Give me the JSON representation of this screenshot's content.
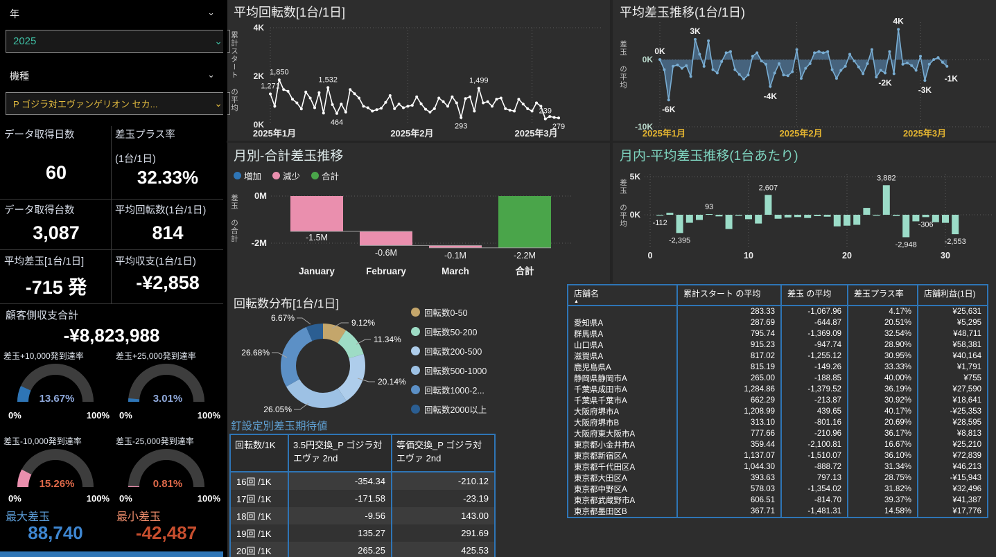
{
  "colors": {
    "accent_blue": "#2E75B6",
    "pink": "#EA8FAE",
    "green": "#4AA54A",
    "teal_bar": "#9BDCC8",
    "axis_yellow": "#E3B431",
    "teal_value": "#3FBFA4",
    "machine_yellow": "#E3BC3F",
    "max_blue": "#3E86D0",
    "min_red": "#C74E2E",
    "gauge_pos_text": "#8FA9DB",
    "gauge_neg_text": "#E06A4A",
    "table_border": "#2E75B6"
  },
  "sidebar": {
    "year_filter": {
      "label": "年",
      "value": "2025"
    },
    "machine_filter": {
      "label": "機種",
      "value": "P ゴジラ対エヴァンゲリオン セカ..."
    },
    "kpis": [
      {
        "label": "データ取得日数",
        "sub": "",
        "value": "60"
      },
      {
        "label": "差玉プラス率",
        "sub": "(1台/1日)",
        "value": "32.33%"
      },
      {
        "label": "データ取得台数",
        "sub": "",
        "value": "3,087"
      },
      {
        "label": "平均回転数(1台/1日)",
        "sub": "",
        "value": "814"
      },
      {
        "label": "平均差玉[1台/1日]",
        "sub": "",
        "value": "-715 発"
      },
      {
        "label": "平均収支(1台/1日)",
        "sub": "",
        "value": "-¥2,858"
      }
    ],
    "total": {
      "label": "顧客側収支合計",
      "value": "-¥8,823,988"
    },
    "gauges": [
      {
        "label": "差玉+10,000発到達率",
        "value": 13.67,
        "text": "13.67%",
        "fill": "#2E75B6",
        "text_color": "#8FA9DB",
        "min": "0%",
        "max": "100%"
      },
      {
        "label": "差玉+25,000発到達率",
        "value": 3.01,
        "text": "3.01%",
        "fill": "#2E75B6",
        "text_color": "#8FA9DB",
        "min": "0%",
        "max": "100%"
      },
      {
        "label": "差玉-10,000発到達率",
        "value": 15.26,
        "text": "15.26%",
        "fill": "#EA8FAE",
        "text_color": "#E06A4A",
        "min": "0%",
        "max": "100%"
      },
      {
        "label": "差玉-25,000発到達率",
        "value": 0.81,
        "text": "0.81%",
        "fill": "#EA8FAE",
        "text_color": "#E06A4A",
        "min": "0%",
        "max": "100%"
      }
    ],
    "max_dama": {
      "label": "最大差玉",
      "value": "88,740"
    },
    "min_dama": {
      "label": "最小差玉",
      "value": "-42,487"
    }
  },
  "chart_data": [
    {
      "id": "rotation_line",
      "type": "line",
      "title": "平均回転数[1台/1日]",
      "ylabel": "累計スタート の平均",
      "ylim": [
        0,
        4000
      ],
      "yticks": [
        {
          "label": "4K",
          "v": 4000
        },
        {
          "label": "2K",
          "v": 2000
        },
        {
          "label": "0K",
          "v": 0
        }
      ],
      "x_slots": 75,
      "xticks": [
        {
          "label": "2025年1月",
          "slot": 0
        },
        {
          "label": "2025年2月",
          "slot": 31
        },
        {
          "label": "2025年3月",
          "slot": 59
        }
      ],
      "line_color": "#FFFFFF",
      "values": [
        1271,
        760,
        1850,
        1450,
        1380,
        1050,
        900,
        650,
        1350,
        1100,
        700,
        1320,
        480,
        1532,
        830,
        464,
        850,
        520,
        1450,
        1280,
        1100,
        760,
        700,
        560,
        620,
        680,
        920,
        1200,
        660,
        850,
        700,
        760,
        800,
        1150,
        860,
        640,
        520,
        660,
        1100,
        950,
        760,
        1150,
        900,
        293,
        1080,
        1150,
        560,
        1499,
        900,
        950,
        760,
        1050,
        1100,
        660,
        600,
        560,
        1050,
        850,
        660,
        560,
        900,
        760,
        239,
        340,
        300,
        279
      ],
      "point_labels": [
        {
          "i": 0,
          "text": "1,271",
          "pos": "above"
        },
        {
          "i": 2,
          "text": "1,850",
          "pos": "above"
        },
        {
          "i": 13,
          "text": "1,532",
          "pos": "above"
        },
        {
          "i": 15,
          "text": "464",
          "pos": "below"
        },
        {
          "i": 43,
          "text": "293",
          "pos": "below"
        },
        {
          "i": 47,
          "text": "1,499",
          "pos": "above"
        },
        {
          "i": 62,
          "text": "239",
          "pos": "above"
        },
        {
          "i": 65,
          "text": "279",
          "pos": "below"
        }
      ]
    },
    {
      "id": "dama_line",
      "type": "area",
      "title": "平均差玉推移(1台/1日)",
      "ylabel": "差玉 の平均",
      "ylim": [
        -10000,
        5000
      ],
      "yticks": [
        {
          "label": "0K",
          "v": 0
        },
        {
          "label": "-10K",
          "v": -10000
        }
      ],
      "x_slots": 75,
      "xticks": [
        {
          "label": "2025年1月",
          "slot": 0
        },
        {
          "label": "2025年2月",
          "slot": 31
        },
        {
          "label": "2025年3月",
          "slot": 59
        }
      ],
      "line_color": "#79ADD2",
      "fill_color": "rgba(86,133,175,0.62)",
      "values": [
        0,
        -1500,
        -6000,
        -1000,
        -800,
        -1300,
        -900,
        -2500,
        3000,
        800,
        -1000,
        2800,
        -1500,
        -2000,
        -300,
        1000,
        1200,
        -1500,
        -2200,
        -2900,
        -2300,
        500,
        1000,
        -200,
        -700,
        -4000,
        -2000,
        -600,
        -2300,
        -2400,
        -1800,
        1500,
        -2800,
        -1300,
        -600,
        1000,
        1200,
        1000,
        1200,
        -1500,
        -2800,
        -1600,
        -1000,
        800,
        -200,
        -1100,
        -2100,
        -600,
        1500,
        -2600,
        -1600,
        -2000,
        1200,
        -2100,
        4500,
        -700,
        -500,
        -900,
        -1600,
        500,
        -3100,
        -700,
        0,
        300,
        -400,
        -1000
      ],
      "point_labels": [
        {
          "i": 0,
          "text": "0K",
          "pos": "above"
        },
        {
          "i": 2,
          "text": "-6K",
          "pos": "below"
        },
        {
          "i": 8,
          "text": "3K",
          "pos": "above"
        },
        {
          "i": 25,
          "text": "-4K",
          "pos": "below"
        },
        {
          "i": 51,
          "text": "-2K",
          "pos": "below"
        },
        {
          "i": 54,
          "text": "4K",
          "pos": "above"
        },
        {
          "i": 60,
          "text": "-3K",
          "pos": "below"
        },
        {
          "i": 65,
          "text": "-1K",
          "pos": "right"
        }
      ]
    },
    {
      "id": "waterfall",
      "type": "waterfall",
      "title": "月別-合計差玉推移",
      "ylabel": "差玉 の合計",
      "legend": [
        {
          "label": "増加",
          "color": "#2E75B6"
        },
        {
          "label": "減少",
          "color": "#EA8FAE"
        },
        {
          "label": "合計",
          "color": "#4AA54A"
        }
      ],
      "categories": [
        "January",
        "February",
        "March",
        "合計"
      ],
      "values_m": [
        -1.5,
        -0.6,
        -0.1,
        -2.2
      ],
      "bar_labels": [
        "-1.5M",
        "-0.6M",
        "-0.1M",
        "-2.2M"
      ],
      "bar_types": [
        "decrease",
        "decrease",
        "decrease",
        "total"
      ],
      "yticks": [
        {
          "label": "0M",
          "v": 0
        },
        {
          "label": "-2M",
          "v": -2
        }
      ]
    },
    {
      "id": "daily_bars",
      "type": "bar",
      "title": "月内-平均差玉推移(1台あたり)",
      "ylabel": "差玉 の平均",
      "bar_color": "#9BDCC8",
      "ylim": [
        -3500,
        5000
      ],
      "yticks": [
        {
          "label": "5K",
          "v": 5000
        },
        {
          "label": "0K",
          "v": 0
        }
      ],
      "xticks": [
        {
          "label": "0",
          "day": 0
        },
        {
          "label": "10",
          "day": 10
        },
        {
          "label": "20",
          "day": 20
        },
        {
          "label": "30",
          "day": 30
        }
      ],
      "values": [
        -112,
        260,
        -2395,
        -1050,
        -680,
        93,
        -210,
        -1870,
        -130,
        -580,
        -1150,
        2607,
        -520,
        -350,
        -300,
        -420,
        -180,
        -250,
        -1520,
        -1430,
        -1320,
        900,
        -120,
        3882,
        -150,
        -2948,
        -860,
        -306,
        -980,
        -1060,
        -2553
      ],
      "point_labels": [
        {
          "i": 0,
          "text": "-112"
        },
        {
          "i": 2,
          "text": "-2,395"
        },
        {
          "i": 5,
          "text": "93"
        },
        {
          "i": 11,
          "text": "2,607"
        },
        {
          "i": 23,
          "text": "3,882"
        },
        {
          "i": 25,
          "text": "-2,948"
        },
        {
          "i": 27,
          "text": "-306"
        },
        {
          "i": 30,
          "text": "-2,553"
        }
      ]
    },
    {
      "id": "donut",
      "type": "donut",
      "title": "回転数分布[1台/1日]",
      "slices": [
        {
          "label": "回転数0-50",
          "pct": "9.12%",
          "value": 9.12,
          "color": "#C4A66B"
        },
        {
          "label": "回転数50-200",
          "pct": "11.34%",
          "value": 11.34,
          "color": "#9EDCC5"
        },
        {
          "label": "回転数200-500",
          "pct": "20.14%",
          "value": 20.14,
          "color": "#AECDEB"
        },
        {
          "label": "回転数500-1000",
          "pct": "26.05%",
          "value": 26.05,
          "color": "#9DC1E4"
        },
        {
          "label": "回転数1000-2...",
          "pct": "26.68%",
          "value": 26.68,
          "color": "#5C90C6"
        },
        {
          "label": "回転数2000以上",
          "pct": "6.67%",
          "value": 6.67,
          "color": "#2B5E92"
        }
      ]
    }
  ],
  "pin_table": {
    "title": "釘設定別差玉期待値",
    "columns": [
      "回転数/1K",
      "3.5円交換_P ゴジラ対エヴァ 2nd",
      "等価交換_P ゴジラ対エヴァ 2nd"
    ],
    "rows": [
      [
        "16回 /1K",
        "-354.34",
        "-210.12"
      ],
      [
        "17回 /1K",
        "-171.58",
        "-23.19"
      ],
      [
        "18回 /1K",
        "-9.56",
        "143.00"
      ],
      [
        "19回 /1K",
        "135.27",
        "291.69"
      ],
      [
        "20回 /1K",
        "265.25",
        "425.53"
      ]
    ]
  },
  "store_table": {
    "columns": [
      "店舗名",
      "累計スタート の平均",
      "差玉 の平均",
      "差玉プラス率",
      "店舗利益(1日)"
    ],
    "sort_indicator": "▲",
    "rows": [
      [
        "",
        "283.33",
        "-1,067.96",
        "4.17%",
        "¥25,631"
      ],
      [
        "愛知県A",
        "287.69",
        "-644.87",
        "20.51%",
        "¥5,295"
      ],
      [
        "群馬県A",
        "795.74",
        "-1,369.09",
        "32.54%",
        "¥48,711"
      ],
      [
        "山口県A",
        "915.23",
        "-947.74",
        "28.90%",
        "¥58,381"
      ],
      [
        "滋賀県A",
        "817.02",
        "-1,255.12",
        "30.95%",
        "¥40,164"
      ],
      [
        "鹿児島県A",
        "815.19",
        "-149.26",
        "33.33%",
        "¥1,791"
      ],
      [
        "静岡県静岡市A",
        "265.00",
        "-188.85",
        "40.00%",
        "¥755"
      ],
      [
        "千葉県成田市A",
        "1,284.86",
        "-1,379.52",
        "36.19%",
        "¥27,590"
      ],
      [
        "千葉県千葉市A",
        "662.29",
        "-213.87",
        "30.92%",
        "¥18,641"
      ],
      [
        "大阪府堺市A",
        "1,208.99",
        "439.65",
        "40.17%",
        "-¥25,353"
      ],
      [
        "大阪府堺市B",
        "313.10",
        "-801.16",
        "20.69%",
        "¥28,595"
      ],
      [
        "大阪府東大阪市A",
        "777.66",
        "-210.96",
        "36.17%",
        "¥8,813"
      ],
      [
        "東京都小金井市A",
        "359.44",
        "-2,100.81",
        "16.67%",
        "¥25,210"
      ],
      [
        "東京都新宿区A",
        "1,137.07",
        "-1,510.07",
        "36.10%",
        "¥72,839"
      ],
      [
        "東京都千代田区A",
        "1,044.30",
        "-888.72",
        "31.34%",
        "¥46,213"
      ],
      [
        "東京都大田区A",
        "393.63",
        "797.13",
        "28.75%",
        "-¥15,943"
      ],
      [
        "東京都中野区A",
        "578.03",
        "-1,354.02",
        "31.82%",
        "¥32,496"
      ],
      [
        "東京都武蔵野市A",
        "606.51",
        "-814.70",
        "39.37%",
        "¥41,387"
      ],
      [
        "東京都墨田区B",
        "367.71",
        "-1,481.31",
        "14.58%",
        "¥17,776"
      ]
    ]
  }
}
